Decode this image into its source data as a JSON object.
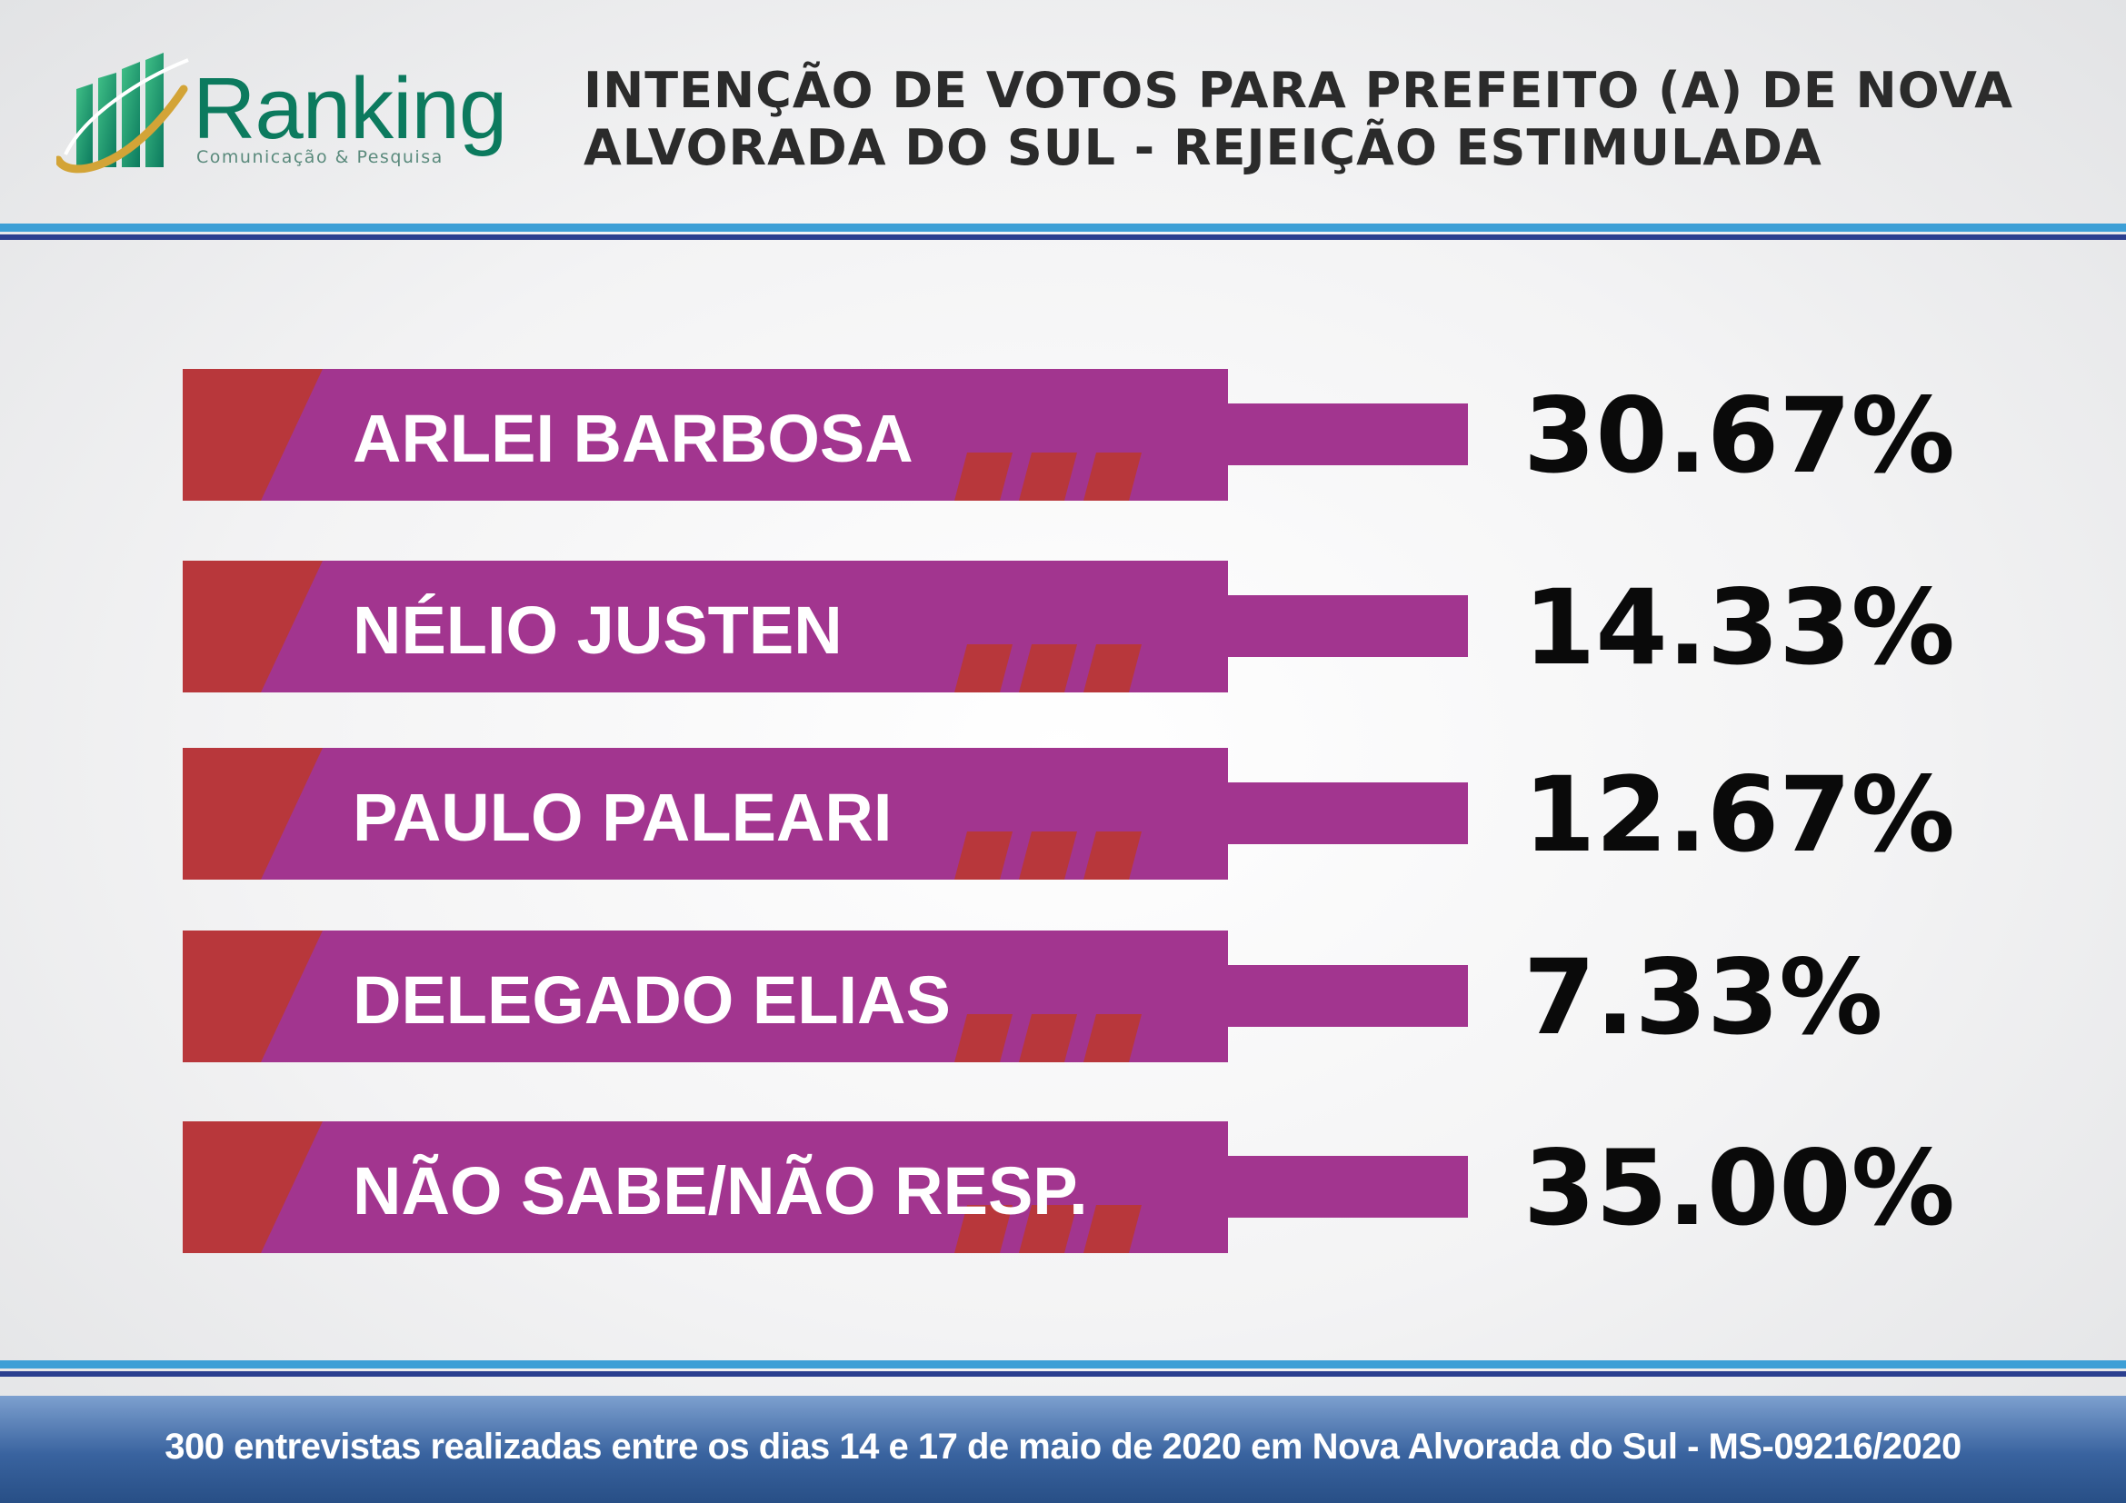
{
  "header": {
    "logo_word": "Ranking",
    "logo_subtitle": "Comunicação & Pesquisa",
    "title": "INTENÇÃO DE VOTOS PARA PREFEITO (A) DE NOVA ALVORADA DO SUL - REJEIÇÃO ESTIMULADA"
  },
  "colors": {
    "bar": "#a2358f",
    "accent": "#b8373b",
    "logo_green": "#0c7a5e",
    "logo_gold": "#d3a437",
    "rule_light": "#3d9fd6",
    "rule_dark": "#2b3f8f"
  },
  "chart_data": {
    "type": "bar",
    "orientation": "horizontal",
    "title": "INTENÇÃO DE VOTOS PARA PREFEITO (A) DE NOVA ALVORADA DO SUL - REJEIÇÃO ESTIMULADA",
    "categories": [
      "ARLEI BARBOSA",
      "NÉLIO JUSTEN",
      "PAULO PALEARI",
      "DELEGADO ELIAS",
      "NÃO SABE/NÃO RESP."
    ],
    "values": [
      30.67,
      14.33,
      12.67,
      7.33,
      35.0
    ],
    "value_labels": [
      "30.67%",
      "14.33%",
      "12.67%",
      "7.33%",
      "35.00%"
    ],
    "unit": "%"
  },
  "footer": {
    "note": "300 entrevistas realizadas entre os dias 14 e 17 de maio de 2020 em Nova Alvorada do Sul - MS-09216/2020"
  }
}
